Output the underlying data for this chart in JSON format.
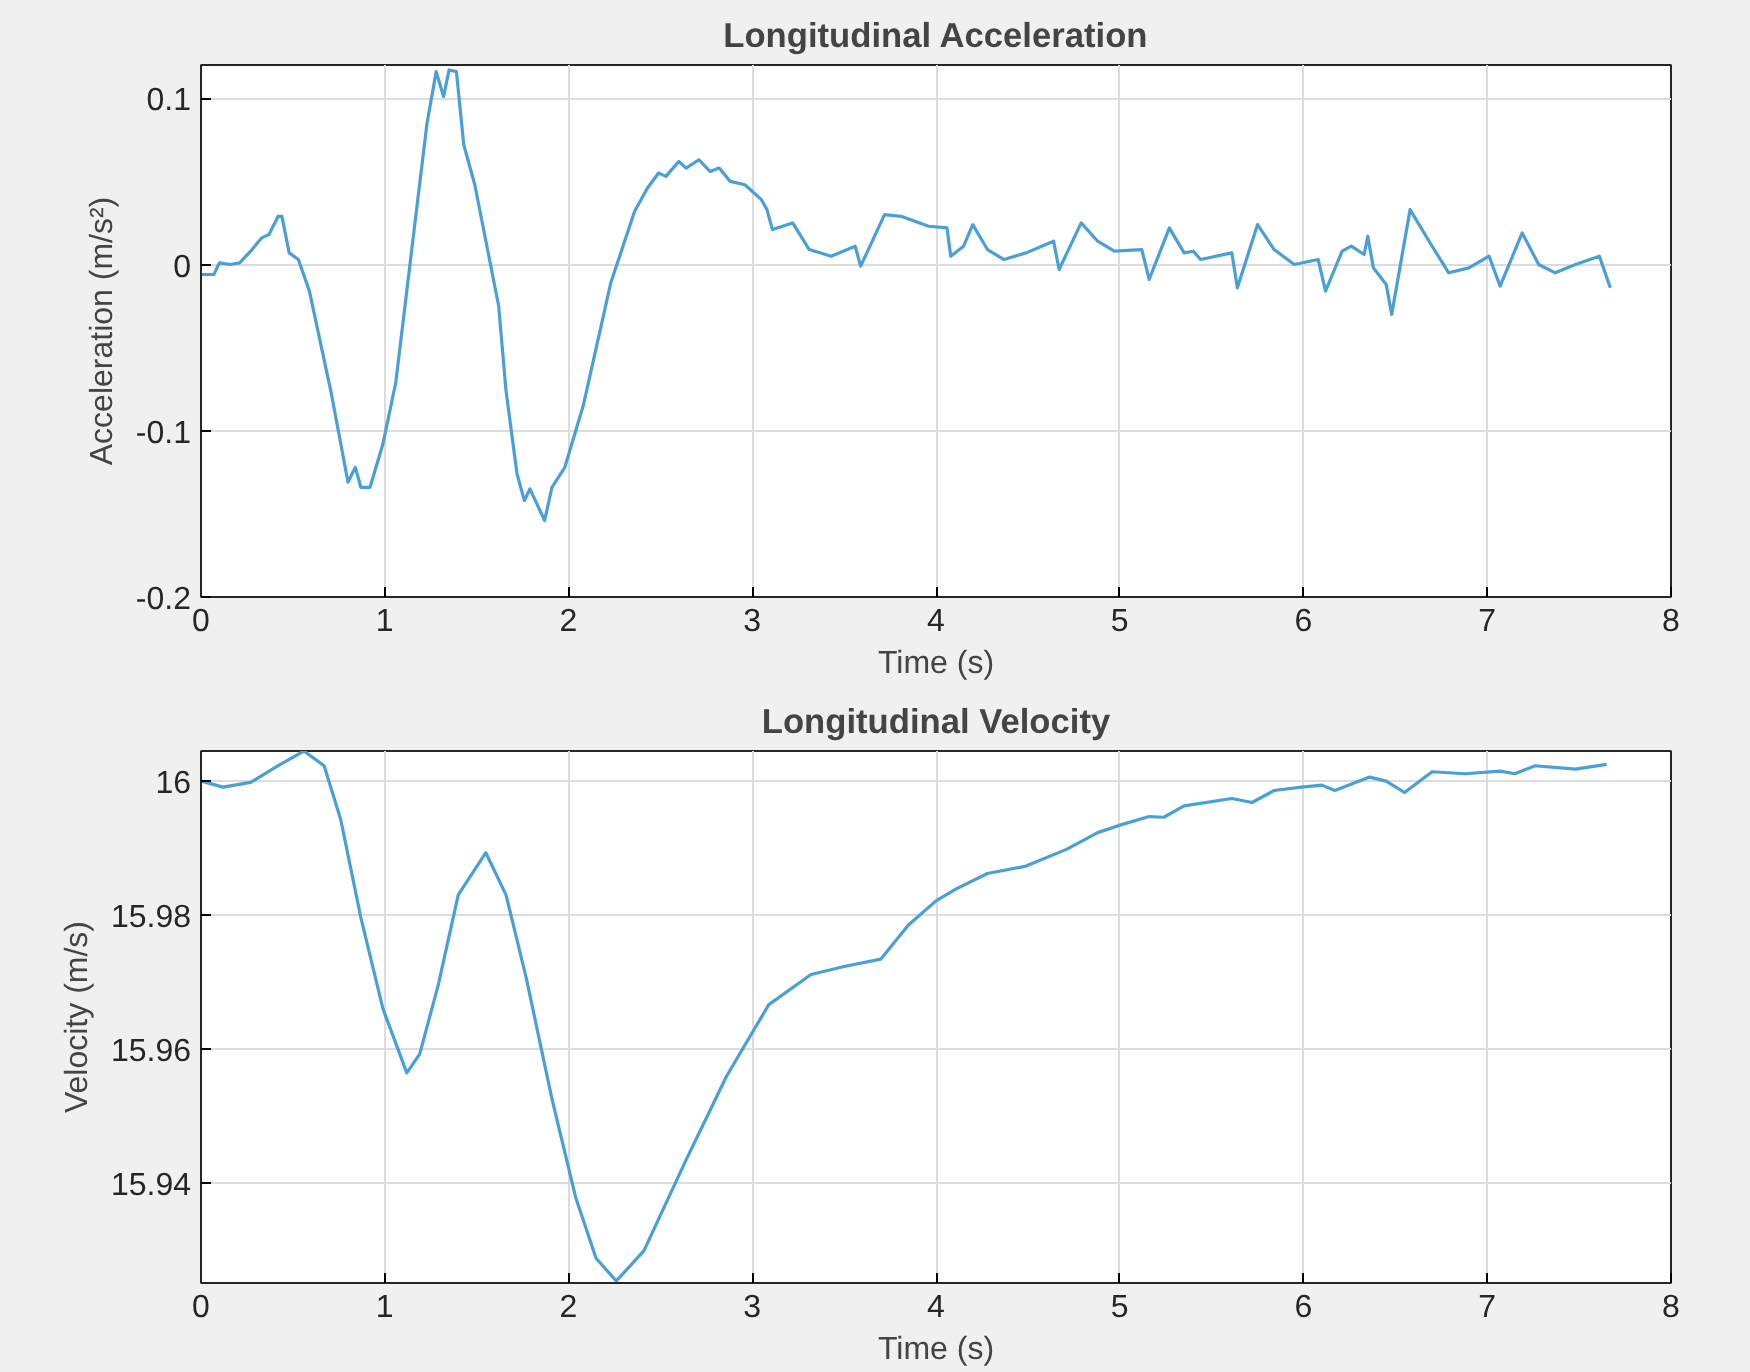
{
  "chart_data": [
    {
      "type": "line",
      "title": "Longitudinal Acceleration",
      "xlabel": "Time (s)",
      "ylabel": "Acceleration (m/s²)",
      "xlim": [
        0,
        8
      ],
      "xticks": [
        0,
        1,
        2,
        3,
        4,
        5,
        6,
        7,
        8
      ],
      "ylim": [
        -0.2,
        0.12
      ],
      "yticks": [
        -0.2,
        -0.1,
        0,
        0.1
      ],
      "grid": true,
      "series": [
        {
          "color": "#4a9fd8",
          "x": [
            0,
            0.07,
            0.1,
            0.16,
            0.21,
            0.27,
            0.33,
            0.37,
            0.42,
            0.44,
            0.48,
            0.53,
            0.59,
            0.71,
            0.8,
            0.84,
            0.87,
            0.92,
            0.99,
            1.06,
            1.16,
            1.23,
            1.28,
            1.32,
            1.35,
            1.39,
            1.43,
            1.49,
            1.62,
            1.66,
            1.72,
            1.76,
            1.79,
            1.87,
            1.91,
            1.98,
            2.08,
            2.23,
            2.36,
            2.43,
            2.49,
            2.53,
            2.6,
            2.64,
            2.71,
            2.77,
            2.82,
            2.88,
            2.96,
            3.05,
            3.08,
            3.11,
            3.22,
            3.31,
            3.43,
            3.56,
            3.59,
            3.72,
            3.81,
            3.96,
            4.06,
            4.08,
            4.15,
            4.2,
            4.28,
            4.37,
            4.49,
            4.64,
            4.67,
            4.79,
            4.88,
            4.97,
            5.12,
            5.16,
            5.27,
            5.35,
            5.4,
            5.44,
            5.61,
            5.64,
            5.75,
            5.84,
            5.95,
            6.08,
            6.12,
            6.21,
            6.26,
            6.33,
            6.35,
            6.38,
            6.45,
            6.48,
            6.58,
            6.7,
            6.79,
            6.9,
            7.01,
            7.07,
            7.19,
            7.28,
            7.37,
            7.48,
            7.61,
            7.67
          ],
          "values": [
            -0.006,
            -0.006,
            0.001,
            0,
            0.001,
            0.008,
            0.016,
            0.018,
            0.029,
            0.029,
            0.007,
            0.003,
            -0.016,
            -0.078,
            -0.131,
            -0.122,
            -0.134,
            -0.134,
            -0.108,
            -0.071,
            0.021,
            0.085,
            0.116,
            0.101,
            0.117,
            0.116,
            0.072,
            0.048,
            -0.025,
            -0.076,
            -0.126,
            -0.142,
            -0.135,
            -0.154,
            -0.134,
            -0.122,
            -0.085,
            -0.011,
            0.032,
            0.046,
            0.055,
            0.053,
            0.062,
            0.058,
            0.063,
            0.056,
            0.058,
            0.05,
            0.048,
            0.039,
            0.033,
            0.021,
            0.025,
            0.009,
            0.005,
            0.011,
            -0.001,
            0.03,
            0.029,
            0.023,
            0.022,
            0.005,
            0.011,
            0.024,
            0.009,
            0.003,
            0.007,
            0.014,
            -0.003,
            0.025,
            0.014,
            0.008,
            0.009,
            -0.009,
            0.022,
            0.007,
            0.008,
            0.003,
            0.007,
            -0.014,
            0.024,
            0.009,
            0,
            0.003,
            -0.016,
            0.008,
            0.011,
            0.006,
            0.017,
            -0.002,
            -0.012,
            -0.03,
            0.033,
            0.011,
            -0.005,
            -0.002,
            0.005,
            -0.013,
            0.019,
            0,
            -0.005,
            0,
            0.005,
            -0.014
          ]
        }
      ]
    },
    {
      "type": "line",
      "title": "Longitudinal Velocity",
      "xlabel": "Time (s)",
      "ylabel": "Velocity (m/s)",
      "xlim": [
        0,
        8
      ],
      "xticks": [
        0,
        1,
        2,
        3,
        4,
        5,
        6,
        7,
        8
      ],
      "ylim": [
        15.925,
        16.0045
      ],
      "yticks": [
        15.94,
        15.96,
        15.98,
        16
      ],
      "grid": true,
      "series": [
        {
          "color": "#4a9fd8",
          "x": [
            0,
            0.12,
            0.27,
            0.42,
            0.56,
            0.67,
            0.76,
            0.87,
            0.99,
            1.12,
            1.19,
            1.29,
            1.4,
            1.55,
            1.66,
            1.77,
            1.91,
            2.04,
            2.15,
            2.26,
            2.41,
            2.64,
            2.86,
            3.09,
            3.32,
            3.5,
            3.7,
            3.85,
            4.0,
            4.11,
            4.28,
            4.49,
            4.71,
            4.88,
            5.01,
            5.16,
            5.24,
            5.35,
            5.61,
            5.72,
            5.84,
            5.99,
            6.1,
            6.17,
            6.36,
            6.45,
            6.55,
            6.7,
            6.88,
            7.07,
            7.15,
            7.26,
            7.48,
            7.65
          ],
          "values": [
            16.0,
            15.9991,
            15.9998,
            16.0023,
            16.0045,
            16.0023,
            15.9943,
            15.9796,
            15.966,
            15.9564,
            15.9592,
            15.9694,
            15.983,
            15.9893,
            15.983,
            15.9706,
            15.9525,
            15.9377,
            15.9287,
            15.9253,
            15.9298,
            15.9434,
            15.9559,
            15.9666,
            15.9711,
            15.9723,
            15.9734,
            15.9785,
            15.9821,
            15.9839,
            15.9862,
            15.9873,
            15.9898,
            15.9923,
            15.9935,
            15.9947,
            15.9946,
            15.9963,
            15.9974,
            15.9968,
            15.9986,
            15.9991,
            15.9994,
            15.9986,
            16.0006,
            16.0,
            15.9983,
            16.0014,
            16.0011,
            16.0015,
            16.0011,
            16.0023,
            16.0018,
            16.0025
          ]
        }
      ]
    }
  ]
}
